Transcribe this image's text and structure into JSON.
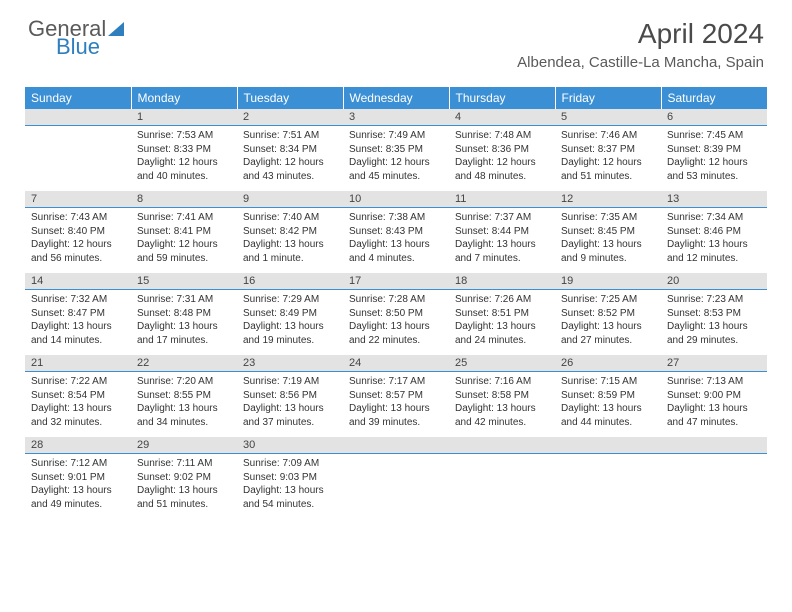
{
  "brand": {
    "part1": "General",
    "part2": "Blue"
  },
  "title": "April 2024",
  "location": "Albendea, Castille-La Mancha, Spain",
  "colors": {
    "header_bg": "#3b8fd4",
    "bar_bg": "#e3e3e3",
    "accent": "#2f7fbf"
  },
  "weekdays": [
    "Sunday",
    "Monday",
    "Tuesday",
    "Wednesday",
    "Thursday",
    "Friday",
    "Saturday"
  ],
  "weeks": [
    [
      null,
      {
        "n": "1",
        "sr": "Sunrise: 7:53 AM",
        "ss": "Sunset: 8:33 PM",
        "d1": "Daylight: 12 hours",
        "d2": "and 40 minutes."
      },
      {
        "n": "2",
        "sr": "Sunrise: 7:51 AM",
        "ss": "Sunset: 8:34 PM",
        "d1": "Daylight: 12 hours",
        "d2": "and 43 minutes."
      },
      {
        "n": "3",
        "sr": "Sunrise: 7:49 AM",
        "ss": "Sunset: 8:35 PM",
        "d1": "Daylight: 12 hours",
        "d2": "and 45 minutes."
      },
      {
        "n": "4",
        "sr": "Sunrise: 7:48 AM",
        "ss": "Sunset: 8:36 PM",
        "d1": "Daylight: 12 hours",
        "d2": "and 48 minutes."
      },
      {
        "n": "5",
        "sr": "Sunrise: 7:46 AM",
        "ss": "Sunset: 8:37 PM",
        "d1": "Daylight: 12 hours",
        "d2": "and 51 minutes."
      },
      {
        "n": "6",
        "sr": "Sunrise: 7:45 AM",
        "ss": "Sunset: 8:39 PM",
        "d1": "Daylight: 12 hours",
        "d2": "and 53 minutes."
      }
    ],
    [
      {
        "n": "7",
        "sr": "Sunrise: 7:43 AM",
        "ss": "Sunset: 8:40 PM",
        "d1": "Daylight: 12 hours",
        "d2": "and 56 minutes."
      },
      {
        "n": "8",
        "sr": "Sunrise: 7:41 AM",
        "ss": "Sunset: 8:41 PM",
        "d1": "Daylight: 12 hours",
        "d2": "and 59 minutes."
      },
      {
        "n": "9",
        "sr": "Sunrise: 7:40 AM",
        "ss": "Sunset: 8:42 PM",
        "d1": "Daylight: 13 hours",
        "d2": "and 1 minute."
      },
      {
        "n": "10",
        "sr": "Sunrise: 7:38 AM",
        "ss": "Sunset: 8:43 PM",
        "d1": "Daylight: 13 hours",
        "d2": "and 4 minutes."
      },
      {
        "n": "11",
        "sr": "Sunrise: 7:37 AM",
        "ss": "Sunset: 8:44 PM",
        "d1": "Daylight: 13 hours",
        "d2": "and 7 minutes."
      },
      {
        "n": "12",
        "sr": "Sunrise: 7:35 AM",
        "ss": "Sunset: 8:45 PM",
        "d1": "Daylight: 13 hours",
        "d2": "and 9 minutes."
      },
      {
        "n": "13",
        "sr": "Sunrise: 7:34 AM",
        "ss": "Sunset: 8:46 PM",
        "d1": "Daylight: 13 hours",
        "d2": "and 12 minutes."
      }
    ],
    [
      {
        "n": "14",
        "sr": "Sunrise: 7:32 AM",
        "ss": "Sunset: 8:47 PM",
        "d1": "Daylight: 13 hours",
        "d2": "and 14 minutes."
      },
      {
        "n": "15",
        "sr": "Sunrise: 7:31 AM",
        "ss": "Sunset: 8:48 PM",
        "d1": "Daylight: 13 hours",
        "d2": "and 17 minutes."
      },
      {
        "n": "16",
        "sr": "Sunrise: 7:29 AM",
        "ss": "Sunset: 8:49 PM",
        "d1": "Daylight: 13 hours",
        "d2": "and 19 minutes."
      },
      {
        "n": "17",
        "sr": "Sunrise: 7:28 AM",
        "ss": "Sunset: 8:50 PM",
        "d1": "Daylight: 13 hours",
        "d2": "and 22 minutes."
      },
      {
        "n": "18",
        "sr": "Sunrise: 7:26 AM",
        "ss": "Sunset: 8:51 PM",
        "d1": "Daylight: 13 hours",
        "d2": "and 24 minutes."
      },
      {
        "n": "19",
        "sr": "Sunrise: 7:25 AM",
        "ss": "Sunset: 8:52 PM",
        "d1": "Daylight: 13 hours",
        "d2": "and 27 minutes."
      },
      {
        "n": "20",
        "sr": "Sunrise: 7:23 AM",
        "ss": "Sunset: 8:53 PM",
        "d1": "Daylight: 13 hours",
        "d2": "and 29 minutes."
      }
    ],
    [
      {
        "n": "21",
        "sr": "Sunrise: 7:22 AM",
        "ss": "Sunset: 8:54 PM",
        "d1": "Daylight: 13 hours",
        "d2": "and 32 minutes."
      },
      {
        "n": "22",
        "sr": "Sunrise: 7:20 AM",
        "ss": "Sunset: 8:55 PM",
        "d1": "Daylight: 13 hours",
        "d2": "and 34 minutes."
      },
      {
        "n": "23",
        "sr": "Sunrise: 7:19 AM",
        "ss": "Sunset: 8:56 PM",
        "d1": "Daylight: 13 hours",
        "d2": "and 37 minutes."
      },
      {
        "n": "24",
        "sr": "Sunrise: 7:17 AM",
        "ss": "Sunset: 8:57 PM",
        "d1": "Daylight: 13 hours",
        "d2": "and 39 minutes."
      },
      {
        "n": "25",
        "sr": "Sunrise: 7:16 AM",
        "ss": "Sunset: 8:58 PM",
        "d1": "Daylight: 13 hours",
        "d2": "and 42 minutes."
      },
      {
        "n": "26",
        "sr": "Sunrise: 7:15 AM",
        "ss": "Sunset: 8:59 PM",
        "d1": "Daylight: 13 hours",
        "d2": "and 44 minutes."
      },
      {
        "n": "27",
        "sr": "Sunrise: 7:13 AM",
        "ss": "Sunset: 9:00 PM",
        "d1": "Daylight: 13 hours",
        "d2": "and 47 minutes."
      }
    ],
    [
      {
        "n": "28",
        "sr": "Sunrise: 7:12 AM",
        "ss": "Sunset: 9:01 PM",
        "d1": "Daylight: 13 hours",
        "d2": "and 49 minutes."
      },
      {
        "n": "29",
        "sr": "Sunrise: 7:11 AM",
        "ss": "Sunset: 9:02 PM",
        "d1": "Daylight: 13 hours",
        "d2": "and 51 minutes."
      },
      {
        "n": "30",
        "sr": "Sunrise: 7:09 AM",
        "ss": "Sunset: 9:03 PM",
        "d1": "Daylight: 13 hours",
        "d2": "and 54 minutes."
      },
      null,
      null,
      null,
      null
    ]
  ]
}
